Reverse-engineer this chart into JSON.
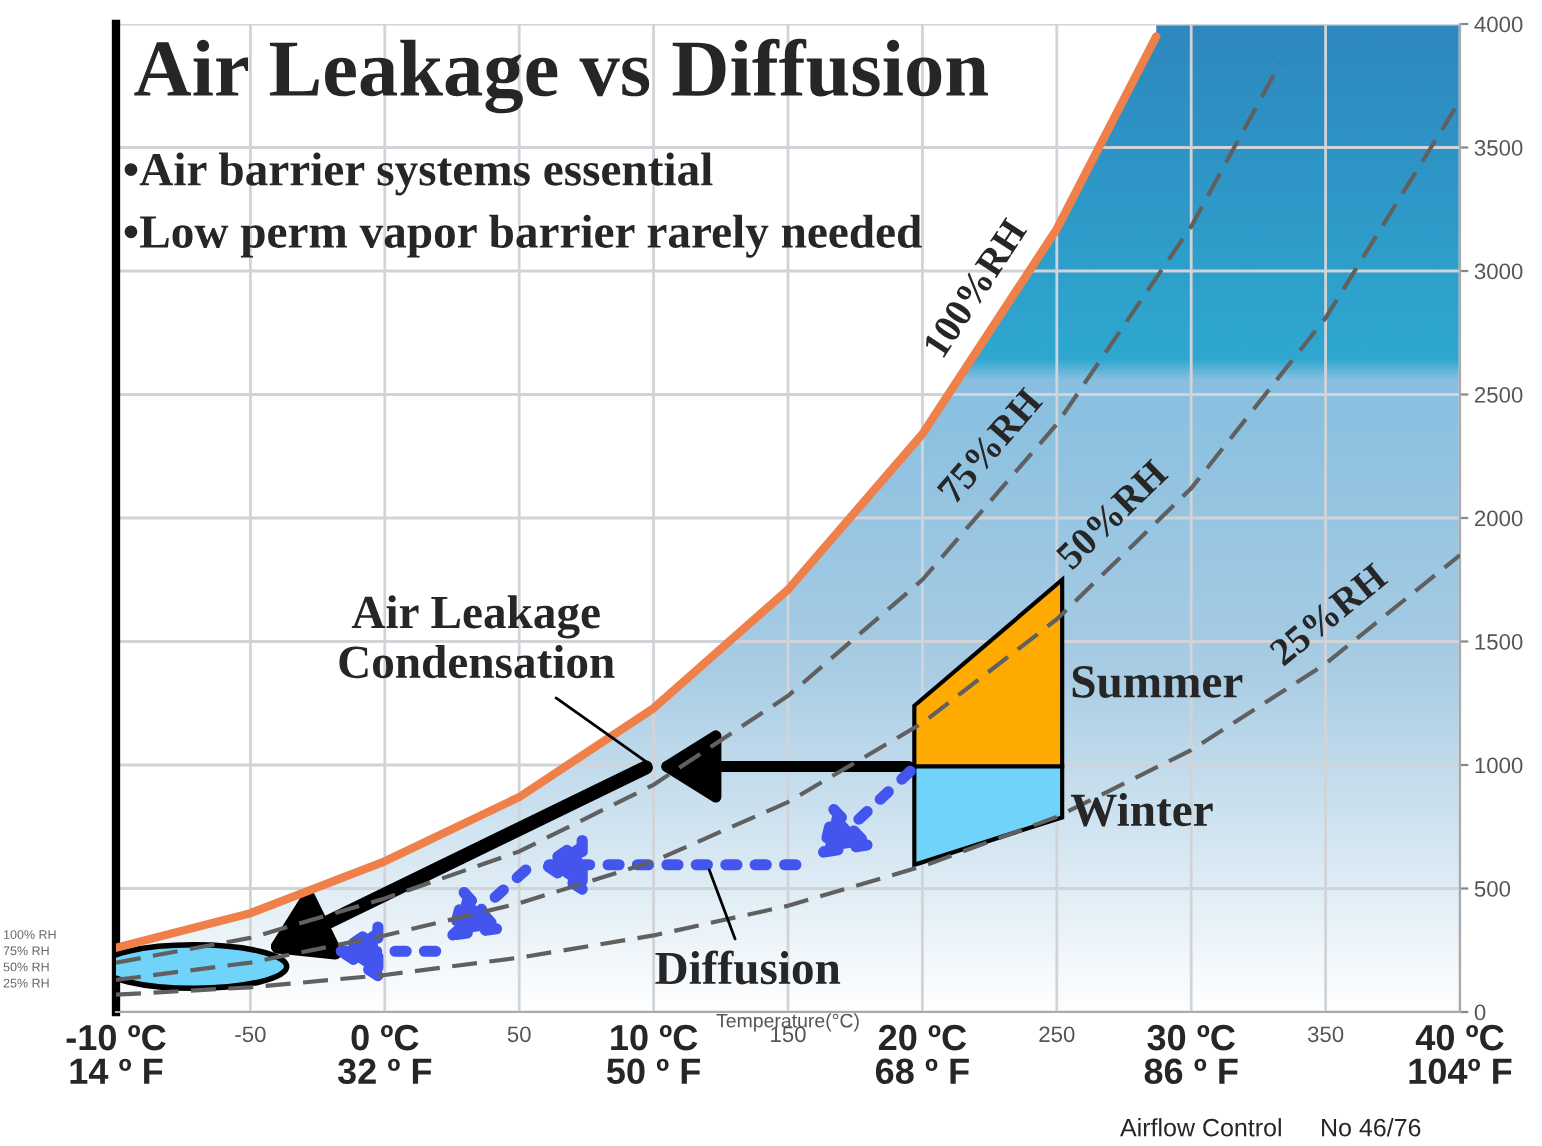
{
  "chart_data": {
    "type": "line",
    "title": "Air Leakage vs Diffusion",
    "xlabel": "Temperature(°C)",
    "series": [
      {
        "name": "100%RH",
        "color": "#f0804a",
        "line_style": "solid",
        "x": [
          -100,
          -50,
          0,
          50,
          100,
          150,
          200,
          250,
          287
        ],
        "values": [
          260,
          400,
          610,
          870,
          1230,
          1710,
          2340,
          3170,
          3950
        ]
      },
      {
        "name": "75%RH",
        "color": "#606060",
        "line_style": "dashed",
        "x": [
          -100,
          -50,
          0,
          50,
          100,
          150,
          200,
          250,
          300,
          333
        ],
        "values": [
          200,
          300,
          460,
          650,
          920,
          1280,
          1750,
          2380,
          3180,
          3840
        ]
      },
      {
        "name": "50%RH",
        "color": "#606060",
        "line_style": "dashed",
        "x": [
          -100,
          -50,
          0,
          50,
          100,
          150,
          200,
          250,
          300,
          350,
          400
        ],
        "values": [
          130,
          200,
          310,
          440,
          610,
          850,
          1170,
          1590,
          2120,
          2810,
          3690
        ]
      },
      {
        "name": "25%RH",
        "color": "#606060",
        "line_style": "dashed",
        "x": [
          -100,
          -50,
          0,
          50,
          100,
          150,
          200,
          250,
          300,
          350,
          400
        ],
        "values": [
          70,
          100,
          150,
          220,
          310,
          430,
          590,
          790,
          1060,
          1410,
          1850
        ]
      }
    ],
    "xlim": [
      -100,
      400
    ],
    "xticks": [
      {
        "value": -100,
        "label": null
      },
      -50,
      {
        "value": 0,
        "label": null
      },
      50,
      {
        "value": 100,
        "label": null
      },
      150,
      {
        "value": 200,
        "label": null
      },
      250,
      {
        "value": 300,
        "label": null
      },
      350,
      {
        "value": 400,
        "label": null
      }
    ],
    "ylim": [
      0,
      4000
    ],
    "yticks": [
      0,
      500,
      1000,
      1500,
      2000,
      2500,
      3000,
      3500,
      4000
    ],
    "grid": true,
    "marker": "none",
    "annotations": [
      "•Air barrier systems essential",
      "•Low perm vapor barrier rarely needed",
      "Air Leakage\nCondensation",
      "Summer",
      "Winter",
      "Diffusion",
      "100% RH\n75% RH\n50% RH\n25% RH",
      "Airflow Control",
      "No 46/76",
      "-10 ºC\n14 º F",
      "0 ºC\n32 º F",
      "10 ºC\n50 º F",
      "20 ºC\n68 º F",
      "30 ºC\n86 º F",
      "40 ºC\n104º F"
    ]
  }
}
